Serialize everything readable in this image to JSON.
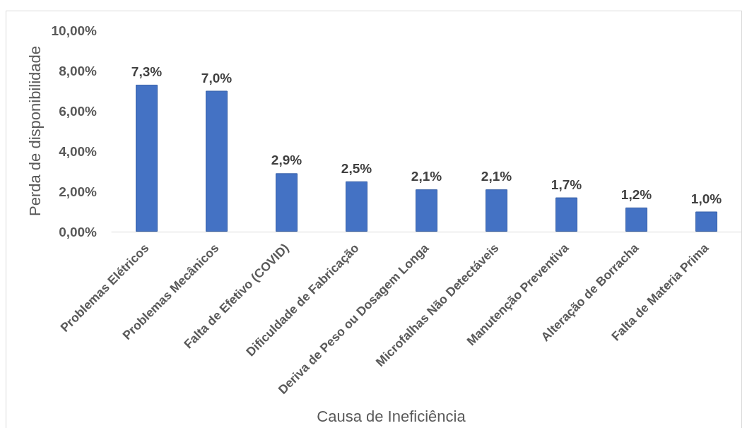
{
  "chart_data": {
    "type": "bar",
    "xlabel": "Causa de Ineficiência",
    "ylabel": "Perda de disponibilidade",
    "categories": [
      "Problemas Elétricos",
      "Problemas Mecânicos",
      "Falta de Efetivo (COVID)",
      "Dificuldade de Fabricação",
      "Deriva de Peso ou Dosagem Longa",
      "Microfalhas Não Detectáveis",
      "Manutenção Preventiva",
      "Alteração de Borracha",
      "Falta de Materia Prima"
    ],
    "values": [
      7.3,
      7.0,
      2.9,
      2.5,
      2.1,
      2.1,
      1.7,
      1.2,
      1.0
    ],
    "value_labels": [
      "7,3%",
      "7,0%",
      "2,9%",
      "2,5%",
      "2,1%",
      "2,1%",
      "1,7%",
      "1,2%",
      "1,0%"
    ],
    "color": "#4472c4",
    "ylim": [
      0,
      10
    ],
    "yticks": [
      {
        "value": 0,
        "label": "0,00%"
      },
      {
        "value": 2,
        "label": "2,00%"
      },
      {
        "value": 4,
        "label": "4,00%"
      },
      {
        "value": 6,
        "label": "6,00%"
      },
      {
        "value": 8,
        "label": "8,00%"
      },
      {
        "value": 10,
        "label": "10,00%"
      }
    ],
    "grid": false
  }
}
